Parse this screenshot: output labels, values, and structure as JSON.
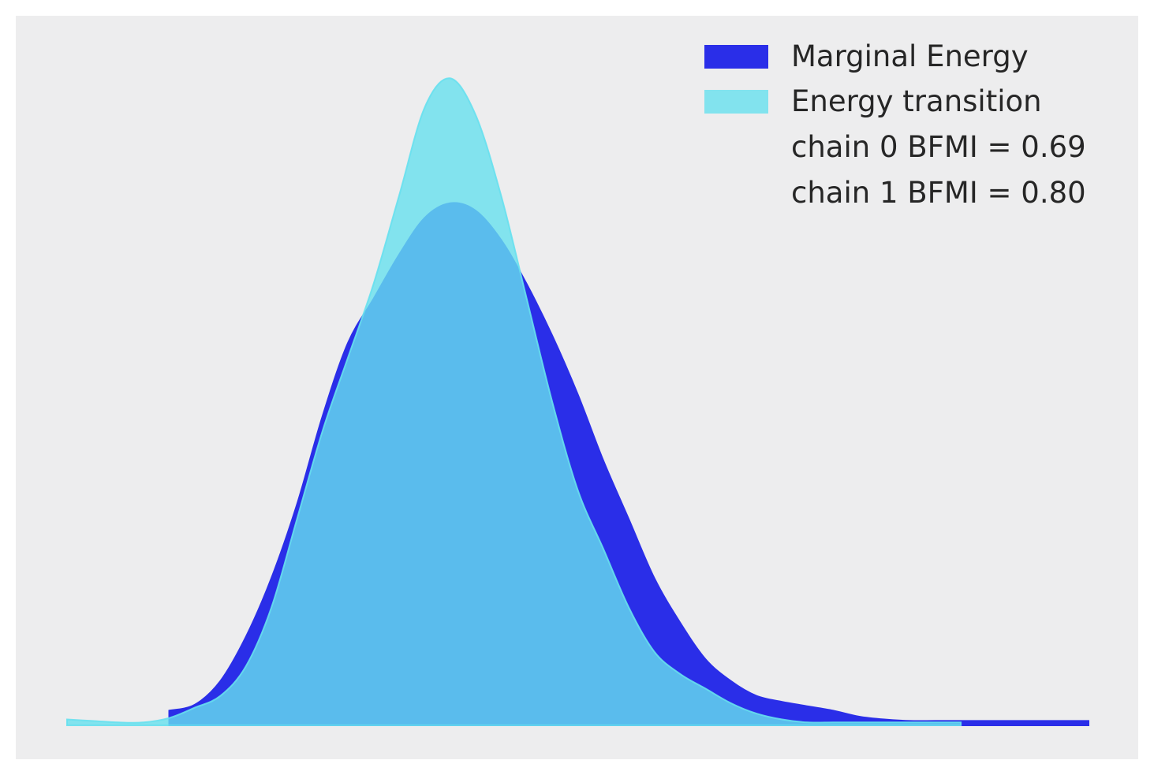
{
  "chart_data": {
    "type": "area",
    "title": "",
    "xlabel": "",
    "ylabel": "",
    "xticks_visible": false,
    "yticks_visible": false,
    "grid": false,
    "background": "#ededee",
    "legend_position": "top-right",
    "x_range": [
      -4.0,
      4.0
    ],
    "y_range": [
      0.0,
      0.46
    ],
    "series": [
      {
        "name": "Marginal Energy",
        "color": "#2a2ee8",
        "opacity": 1.0,
        "x": [
          -3.2,
          -3.0,
          -2.8,
          -2.6,
          -2.4,
          -2.2,
          -2.0,
          -1.8,
          -1.6,
          -1.4,
          -1.2,
          -1.0,
          -0.8,
          -0.6,
          -0.4,
          -0.2,
          0.0,
          0.2,
          0.4,
          0.6,
          0.8,
          1.0,
          1.2,
          1.4,
          1.6,
          1.8,
          2.0,
          2.2,
          2.4,
          2.6,
          2.8,
          3.0,
          3.2,
          3.4,
          3.6,
          3.8,
          4.0
        ],
        "y": [
          0.01,
          0.014,
          0.03,
          0.06,
          0.1,
          0.15,
          0.21,
          0.26,
          0.29,
          0.32,
          0.345,
          0.355,
          0.35,
          0.33,
          0.3,
          0.265,
          0.225,
          0.18,
          0.14,
          0.1,
          0.07,
          0.045,
          0.03,
          0.02,
          0.016,
          0.013,
          0.01,
          0.006,
          0.004,
          0.003,
          0.003,
          0.003,
          0.003,
          0.003,
          0.003,
          0.003,
          0.003
        ]
      },
      {
        "name": "Energy transition",
        "color": "#67e0ee",
        "opacity": 0.8,
        "x": [
          -4.0,
          -3.8,
          -3.6,
          -3.4,
          -3.2,
          -3.0,
          -2.8,
          -2.6,
          -2.4,
          -2.2,
          -2.0,
          -1.8,
          -1.6,
          -1.4,
          -1.2,
          -1.0,
          -0.8,
          -0.6,
          -0.4,
          -0.2,
          0.0,
          0.2,
          0.4,
          0.6,
          0.8,
          1.0,
          1.2,
          1.4,
          1.6,
          1.8,
          2.0,
          2.2,
          2.4,
          2.6,
          2.8,
          3.0
        ],
        "y": [
          0.004,
          0.003,
          0.002,
          0.002,
          0.005,
          0.012,
          0.02,
          0.04,
          0.08,
          0.14,
          0.2,
          0.25,
          0.3,
          0.36,
          0.42,
          0.44,
          0.415,
          0.36,
          0.29,
          0.22,
          0.16,
          0.12,
          0.08,
          0.05,
          0.035,
          0.025,
          0.015,
          0.008,
          0.004,
          0.002,
          0.002,
          0.002,
          0.002,
          0.002,
          0.002,
          0.002
        ]
      }
    ],
    "legend_entries": [
      "Marginal Energy",
      "Energy transition",
      "chain  0 BFMI = 0.69",
      "chain  1 BFMI = 0.80"
    ]
  }
}
